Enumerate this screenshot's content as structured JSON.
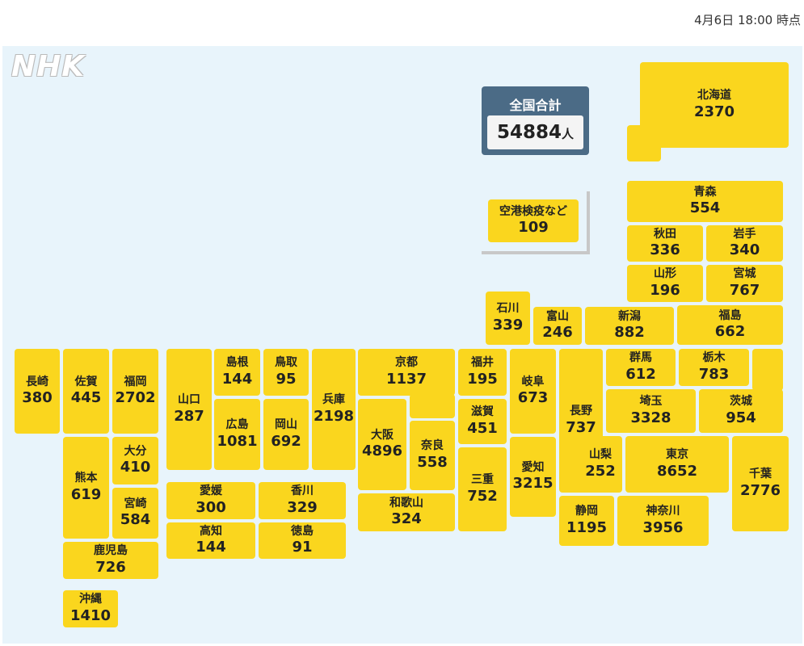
{
  "header": {
    "timestamp": "4月6日 18:00 時点"
  },
  "logo": "NHK",
  "total": {
    "label": "全国合計",
    "value": 54884,
    "unit": "人"
  },
  "airport": {
    "label": "空港検疫など",
    "value": 109
  },
  "prefectures": [
    {
      "name": "北海道",
      "value": 2370
    },
    {
      "name": "青森",
      "value": 554
    },
    {
      "name": "秋田",
      "value": 336
    },
    {
      "name": "岩手",
      "value": 340
    },
    {
      "name": "山形",
      "value": 196
    },
    {
      "name": "宮城",
      "value": 767
    },
    {
      "name": "石川",
      "value": 339
    },
    {
      "name": "富山",
      "value": 246
    },
    {
      "name": "新潟",
      "value": 882
    },
    {
      "name": "福島",
      "value": 662
    },
    {
      "name": "長崎",
      "value": 380
    },
    {
      "name": "佐賀",
      "value": 445
    },
    {
      "name": "福岡",
      "value": 2702
    },
    {
      "name": "山口",
      "value": 287
    },
    {
      "name": "島根",
      "value": 144
    },
    {
      "name": "鳥取",
      "value": 95
    },
    {
      "name": "広島",
      "value": 1081
    },
    {
      "name": "岡山",
      "value": 692
    },
    {
      "name": "兵庫",
      "value": 2198
    },
    {
      "name": "京都",
      "value": 1137
    },
    {
      "name": "大阪",
      "value": 4896
    },
    {
      "name": "奈良",
      "value": 558
    },
    {
      "name": "和歌山",
      "value": 324
    },
    {
      "name": "福井",
      "value": 195
    },
    {
      "name": "滋賀",
      "value": 451
    },
    {
      "name": "三重",
      "value": 752
    },
    {
      "name": "岐阜",
      "value": 673
    },
    {
      "name": "愛知",
      "value": 3215
    },
    {
      "name": "長野",
      "value": 737
    },
    {
      "name": "群馬",
      "value": 612
    },
    {
      "name": "栃木",
      "value": 783
    },
    {
      "name": "埼玉",
      "value": 3328
    },
    {
      "name": "茨城",
      "value": 954
    },
    {
      "name": "山梨",
      "value": 252
    },
    {
      "name": "東京",
      "value": 8652
    },
    {
      "name": "千葉",
      "value": 2776
    },
    {
      "name": "静岡",
      "value": 1195
    },
    {
      "name": "神奈川",
      "value": 3956
    },
    {
      "name": "大分",
      "value": 410
    },
    {
      "name": "宮崎",
      "value": 584
    },
    {
      "name": "熊本",
      "value": 619
    },
    {
      "name": "鹿児島",
      "value": 726
    },
    {
      "name": "沖縄",
      "value": 1410
    },
    {
      "name": "愛媛",
      "value": 300
    },
    {
      "name": "香川",
      "value": 329
    },
    {
      "name": "高知",
      "value": 144
    },
    {
      "name": "徳島",
      "value": 91
    }
  ]
}
